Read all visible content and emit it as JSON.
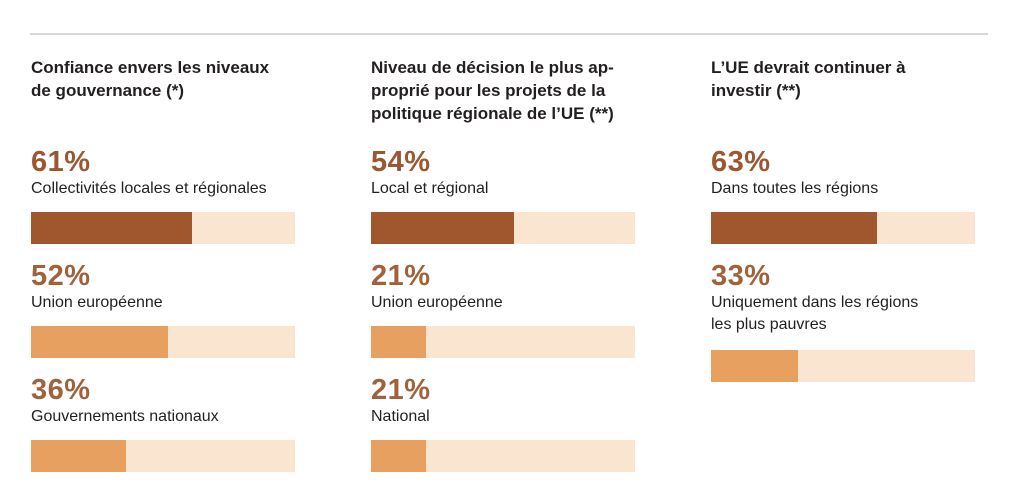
{
  "chart_data": [
    {
      "type": "bar",
      "title": "Confiance envers les niveaux de gouvernance (*)",
      "categories": [
        "Collectivités locales et régionales",
        "Union européenne",
        "Gouvernements nationaux"
      ],
      "values": [
        61,
        52,
        36
      ],
      "value_labels": [
        "61%",
        "52%",
        "36%"
      ],
      "unit": "%",
      "xlim": [
        0,
        100
      ]
    },
    {
      "type": "bar",
      "title": "Niveau de décision le plus ap-proprié pour les projets de la politique régionale de l’UE (**)",
      "categories": [
        "Local et régional",
        "Union européenne",
        "National"
      ],
      "values": [
        54,
        21,
        21
      ],
      "value_labels": [
        "54%",
        "21%",
        "21%"
      ],
      "unit": "%",
      "xlim": [
        0,
        100
      ]
    },
    {
      "type": "bar",
      "title": "L’UE devrait continuer à investir (**)",
      "categories": [
        "Dans toutes les régions",
        "Uniquement dans les régions les plus pauvres"
      ],
      "values": [
        63,
        33
      ],
      "value_labels": [
        "63%",
        "33%"
      ],
      "unit": "%",
      "xlim": [
        0,
        100
      ]
    }
  ],
  "panels": [
    {
      "title_lines": [
        "Confiance envers les niveaux",
        "de gouvernance (*)"
      ],
      "items": [
        {
          "pct": "61%",
          "label_lines": [
            "Collectivités locales et régionales"
          ],
          "value": 61
        },
        {
          "pct": "52%",
          "label_lines": [
            "Union européenne"
          ],
          "value": 52
        },
        {
          "pct": "36%",
          "label_lines": [
            "Gouvernements nationaux"
          ],
          "value": 36
        }
      ]
    },
    {
      "title_lines": [
        "Niveau de décision le plus ap-",
        "proprié pour les projets de la",
        "politique régionale de l’UE (**)"
      ],
      "items": [
        {
          "pct": "54%",
          "label_lines": [
            "Local et régional"
          ],
          "value": 54
        },
        {
          "pct": "21%",
          "label_lines": [
            "Union européenne"
          ],
          "value": 21
        },
        {
          "pct": "21%",
          "label_lines": [
            "National"
          ],
          "value": 21
        }
      ]
    },
    {
      "title_lines": [
        "L’UE devrait continuer à",
        "investir (**)"
      ],
      "items": [
        {
          "pct": "63%",
          "label_lines": [
            "Dans toutes les régions"
          ],
          "value": 63
        },
        {
          "pct": "33%",
          "label_lines": [
            "Uniquement dans les régions",
            "les plus pauvres"
          ],
          "value": 33
        }
      ]
    }
  ],
  "colors": {
    "primary_bar": "#a0572e",
    "secondary_bar": "#e8a060",
    "bar_track": "#fae5d0",
    "primary_pct": "#9b5731",
    "secondary_pct": "#a0623a",
    "rule": "#d9d6d4"
  }
}
